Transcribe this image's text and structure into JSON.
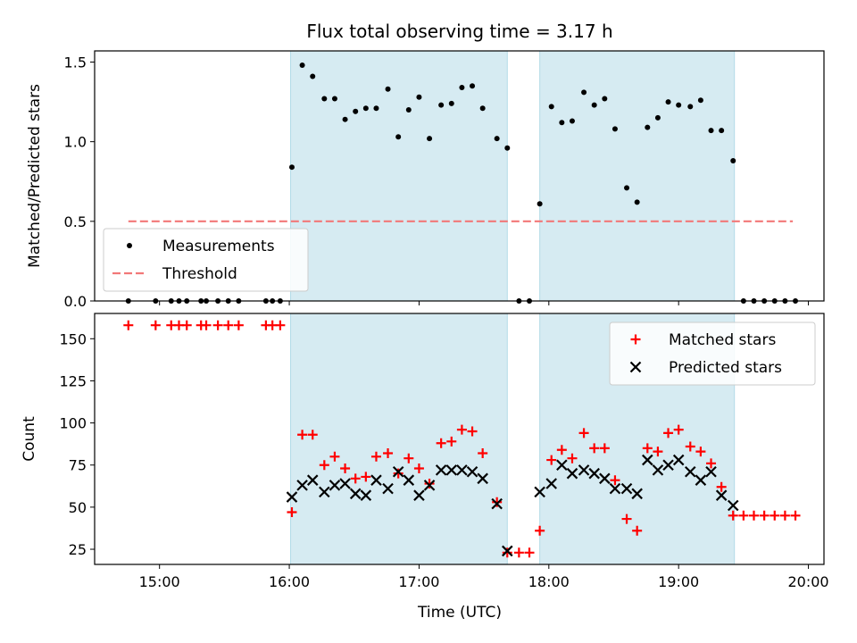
{
  "chart_data": {
    "title": "Flux total observing time = 3.17 h",
    "xlabel": "Time (UTC)",
    "xlim": [
      14.5,
      20.12
    ],
    "xticks": [
      {
        "value": 15,
        "label": "15:00"
      },
      {
        "value": 16,
        "label": "16:00"
      },
      {
        "value": 17,
        "label": "17:00"
      },
      {
        "value": 18,
        "label": "18:00"
      },
      {
        "value": 19,
        "label": "19:00"
      },
      {
        "value": 20,
        "label": "20:00"
      }
    ],
    "shaded_intervals": [
      [
        16.01,
        17.68
      ],
      [
        17.93,
        19.43
      ]
    ],
    "panels": [
      {
        "type": "scatter",
        "ylabel": "Matched/Predicted stars",
        "ylim": [
          0,
          1.57
        ],
        "yticks": [
          {
            "value": 0,
            "label": "0.0"
          },
          {
            "value": 0.5,
            "label": "0.5"
          },
          {
            "value": 1.0,
            "label": "1.0"
          },
          {
            "value": 1.5,
            "label": "1.5"
          }
        ],
        "legend_position": "lower-left",
        "series": [
          {
            "name": "Measurements",
            "marker": "dot",
            "color": "#000000",
            "points": [
              [
                14.76,
                0
              ],
              [
                14.97,
                0
              ],
              [
                15.09,
                0
              ],
              [
                15.15,
                0
              ],
              [
                15.21,
                0
              ],
              [
                15.32,
                0
              ],
              [
                15.36,
                0
              ],
              [
                15.45,
                0
              ],
              [
                15.53,
                0
              ],
              [
                15.61,
                0
              ],
              [
                15.82,
                0
              ],
              [
                15.87,
                0
              ],
              [
                15.93,
                0
              ],
              [
                16.02,
                0.84
              ],
              [
                16.1,
                1.48
              ],
              [
                16.18,
                1.41
              ],
              [
                16.27,
                1.27
              ],
              [
                16.35,
                1.27
              ],
              [
                16.43,
                1.14
              ],
              [
                16.51,
                1.19
              ],
              [
                16.59,
                1.21
              ],
              [
                16.67,
                1.21
              ],
              [
                16.76,
                1.33
              ],
              [
                16.84,
                1.03
              ],
              [
                16.92,
                1.2
              ],
              [
                17.0,
                1.28
              ],
              [
                17.08,
                1.02
              ],
              [
                17.17,
                1.23
              ],
              [
                17.25,
                1.24
              ],
              [
                17.33,
                1.34
              ],
              [
                17.41,
                1.35
              ],
              [
                17.49,
                1.21
              ],
              [
                17.6,
                1.02
              ],
              [
                17.68,
                0.96
              ],
              [
                17.77,
                0
              ],
              [
                17.85,
                0
              ],
              [
                17.93,
                0.61
              ],
              [
                18.02,
                1.22
              ],
              [
                18.1,
                1.12
              ],
              [
                18.18,
                1.13
              ],
              [
                18.27,
                1.31
              ],
              [
                18.35,
                1.23
              ],
              [
                18.43,
                1.27
              ],
              [
                18.51,
                1.08
              ],
              [
                18.6,
                0.71
              ],
              [
                18.68,
                0.62
              ],
              [
                18.76,
                1.09
              ],
              [
                18.84,
                1.15
              ],
              [
                18.92,
                1.25
              ],
              [
                19.0,
                1.23
              ],
              [
                19.09,
                1.22
              ],
              [
                19.17,
                1.26
              ],
              [
                19.25,
                1.07
              ],
              [
                19.33,
                1.07
              ],
              [
                19.42,
                0.88
              ],
              [
                19.5,
                0
              ],
              [
                19.58,
                0
              ],
              [
                19.66,
                0
              ],
              [
                19.74,
                0
              ],
              [
                19.82,
                0
              ],
              [
                19.9,
                0
              ]
            ]
          },
          {
            "name": "Threshold",
            "style": "dashed",
            "color": "#f27878",
            "points": [
              [
                14.76,
                0.5
              ],
              [
                19.88,
                0.5
              ]
            ]
          }
        ]
      },
      {
        "type": "scatter",
        "ylabel": "Count",
        "ylim": [
          16,
          165
        ],
        "yticks": [
          {
            "value": 25,
            "label": "25"
          },
          {
            "value": 50,
            "label": "50"
          },
          {
            "value": 75,
            "label": "75"
          },
          {
            "value": 100,
            "label": "100"
          },
          {
            "value": 125,
            "label": "125"
          },
          {
            "value": 150,
            "label": "150"
          }
        ],
        "legend_position": "upper-right",
        "series": [
          {
            "name": "Matched stars",
            "marker": "plus",
            "color": "#ff0000",
            "points": [
              [
                14.76,
                158
              ],
              [
                14.97,
                158
              ],
              [
                15.09,
                158
              ],
              [
                15.15,
                158
              ],
              [
                15.21,
                158
              ],
              [
                15.32,
                158
              ],
              [
                15.36,
                158
              ],
              [
                15.45,
                158
              ],
              [
                15.53,
                158
              ],
              [
                15.61,
                158
              ],
              [
                15.82,
                158
              ],
              [
                15.87,
                158
              ],
              [
                15.93,
                158
              ],
              [
                16.02,
                47
              ],
              [
                16.1,
                93
              ],
              [
                16.18,
                93
              ],
              [
                16.27,
                75
              ],
              [
                16.35,
                80
              ],
              [
                16.43,
                73
              ],
              [
                16.51,
                67
              ],
              [
                16.59,
                68
              ],
              [
                16.67,
                80
              ],
              [
                16.76,
                82
              ],
              [
                16.84,
                70
              ],
              [
                16.92,
                79
              ],
              [
                17.0,
                73
              ],
              [
                17.08,
                64
              ],
              [
                17.17,
                88
              ],
              [
                17.25,
                89
              ],
              [
                17.33,
                96
              ],
              [
                17.41,
                95
              ],
              [
                17.49,
                82
              ],
              [
                17.6,
                53
              ],
              [
                17.68,
                23
              ],
              [
                17.77,
                23
              ],
              [
                17.85,
                23
              ],
              [
                17.93,
                36
              ],
              [
                18.02,
                78
              ],
              [
                18.1,
                84
              ],
              [
                18.18,
                79
              ],
              [
                18.27,
                94
              ],
              [
                18.35,
                85
              ],
              [
                18.43,
                85
              ],
              [
                18.51,
                66
              ],
              [
                18.6,
                43
              ],
              [
                18.68,
                36
              ],
              [
                18.76,
                85
              ],
              [
                18.84,
                83
              ],
              [
                18.92,
                94
              ],
              [
                19.0,
                96
              ],
              [
                19.09,
                86
              ],
              [
                19.17,
                83
              ],
              [
                19.25,
                76
              ],
              [
                19.33,
                62
              ],
              [
                19.42,
                45
              ],
              [
                19.5,
                45
              ],
              [
                19.58,
                45
              ],
              [
                19.66,
                45
              ],
              [
                19.74,
                45
              ],
              [
                19.82,
                45
              ],
              [
                19.9,
                45
              ]
            ]
          },
          {
            "name": "Predicted stars",
            "marker": "x",
            "color": "#000000",
            "points": [
              [
                16.02,
                56
              ],
              [
                16.1,
                63
              ],
              [
                16.18,
                66
              ],
              [
                16.27,
                59
              ],
              [
                16.35,
                63
              ],
              [
                16.43,
                64
              ],
              [
                16.51,
                58
              ],
              [
                16.59,
                57
              ],
              [
                16.67,
                66
              ],
              [
                16.76,
                61
              ],
              [
                16.84,
                71
              ],
              [
                16.92,
                66
              ],
              [
                17.0,
                57
              ],
              [
                17.08,
                63
              ],
              [
                17.17,
                72
              ],
              [
                17.25,
                72
              ],
              [
                17.33,
                72
              ],
              [
                17.41,
                71
              ],
              [
                17.49,
                67
              ],
              [
                17.6,
                52
              ],
              [
                17.68,
                24
              ],
              [
                17.93,
                59
              ],
              [
                18.02,
                64
              ],
              [
                18.1,
                75
              ],
              [
                18.18,
                70
              ],
              [
                18.27,
                72
              ],
              [
                18.35,
                70
              ],
              [
                18.43,
                67
              ],
              [
                18.51,
                61
              ],
              [
                18.6,
                61
              ],
              [
                18.68,
                58
              ],
              [
                18.76,
                78
              ],
              [
                18.84,
                72
              ],
              [
                18.92,
                75
              ],
              [
                19.0,
                78
              ],
              [
                19.09,
                71
              ],
              [
                19.17,
                66
              ],
              [
                19.25,
                71
              ],
              [
                19.33,
                57
              ],
              [
                19.42,
                51
              ]
            ]
          }
        ]
      }
    ]
  }
}
